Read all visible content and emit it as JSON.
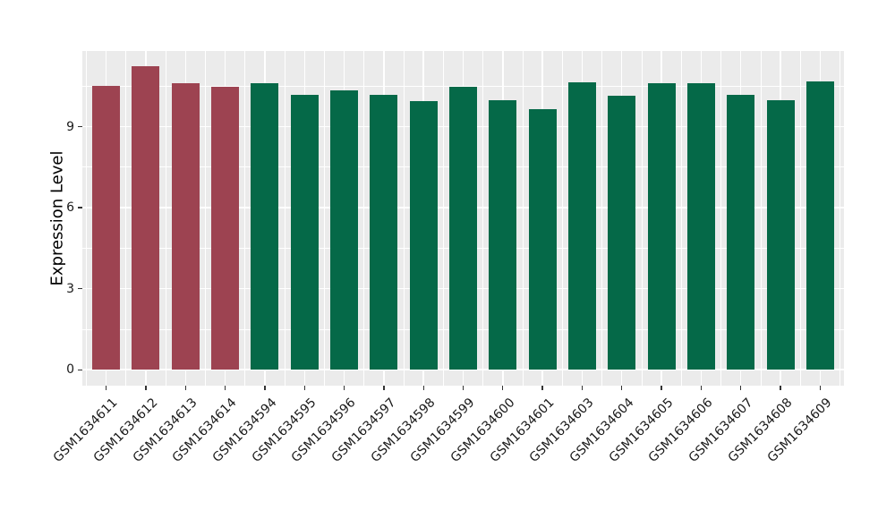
{
  "chart_data": {
    "type": "bar",
    "title": "",
    "xlabel": "",
    "ylabel": "Expression Level",
    "categories": [
      "GSM1634611",
      "GSM1634612",
      "GSM1634613",
      "GSM1634614",
      "GSM1634594",
      "GSM1634595",
      "GSM1634596",
      "GSM1634597",
      "GSM1634598",
      "GSM1634599",
      "GSM1634600",
      "GSM1634601",
      "GSM1634603",
      "GSM1634604",
      "GSM1634605",
      "GSM1634606",
      "GSM1634607",
      "GSM1634608",
      "GSM1634609"
    ],
    "series": [
      {
        "name": "Expression Level",
        "values": [
          10.52,
          11.24,
          10.61,
          10.49,
          10.61,
          10.17,
          10.34,
          10.19,
          9.94,
          10.48,
          9.99,
          9.64,
          10.65,
          10.15,
          10.6,
          10.6,
          10.19,
          9.97,
          10.66
        ]
      }
    ],
    "bar_colors": [
      "#9d4351",
      "#9d4351",
      "#9d4351",
      "#9d4351",
      "#056948",
      "#056948",
      "#056948",
      "#056948",
      "#056948",
      "#056948",
      "#056948",
      "#056948",
      "#056948",
      "#056948",
      "#056948",
      "#056948",
      "#056948",
      "#056948",
      "#056948"
    ],
    "group_colors": {
      "highlight": "#9d4351",
      "base": "#056948"
    },
    "yticks": [
      0,
      3,
      6,
      9
    ],
    "ytick_labels": [
      "0",
      "3",
      "6",
      "9"
    ],
    "minor_yticks": [
      1.5,
      4.5,
      7.5,
      10.5
    ],
    "ylim": [
      -0.59,
      11.8
    ],
    "panel_background": "#ebebeb",
    "grid_color": "#ffffff",
    "tick_color": "#333333",
    "text_color": "#1a1a1a",
    "legend_position": "none",
    "bar_width_fraction": 0.7
  }
}
